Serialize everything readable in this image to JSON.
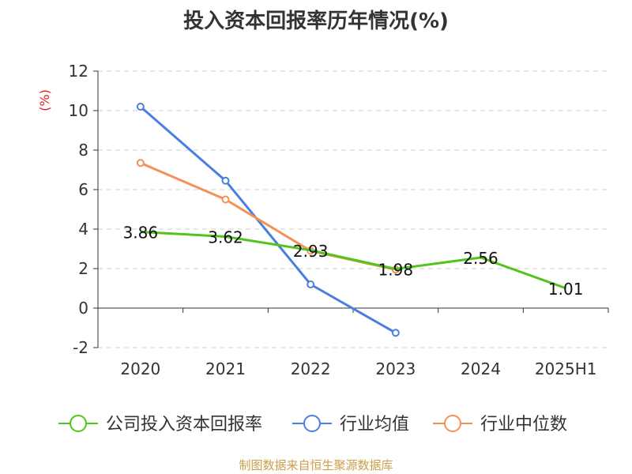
{
  "title": "投入资本回报率历年情况(%)",
  "source": "制图数据来自恒生聚源数据库",
  "chart_data": {
    "type": "line",
    "title": "投入资本回报率历年情况(%)",
    "ylabel": "(%)",
    "xlabel": "",
    "categories": [
      "2020",
      "2021",
      "2022",
      "2023",
      "2024",
      "2025H1"
    ],
    "ylim": [
      -2,
      12
    ],
    "yticks": [
      -2,
      0,
      2,
      4,
      6,
      8,
      10,
      12
    ],
    "grid": true,
    "legend_position": "bottom",
    "series": [
      {
        "name": "公司投入资本回报率",
        "color": "#52c41a",
        "values": [
          3.86,
          3.62,
          2.93,
          1.98,
          2.56,
          1.01
        ],
        "labels": [
          "3.86",
          "3.62",
          "2.93",
          "1.98",
          "2.56",
          "1.01"
        ]
      },
      {
        "name": "行业均值",
        "color": "#4a7fe0",
        "values": [
          10.2,
          6.45,
          1.2,
          -1.25,
          null,
          null
        ]
      },
      {
        "name": "行业中位数",
        "color": "#f59058",
        "values": [
          7.35,
          5.5,
          2.9,
          1.95,
          null,
          null
        ]
      }
    ]
  }
}
